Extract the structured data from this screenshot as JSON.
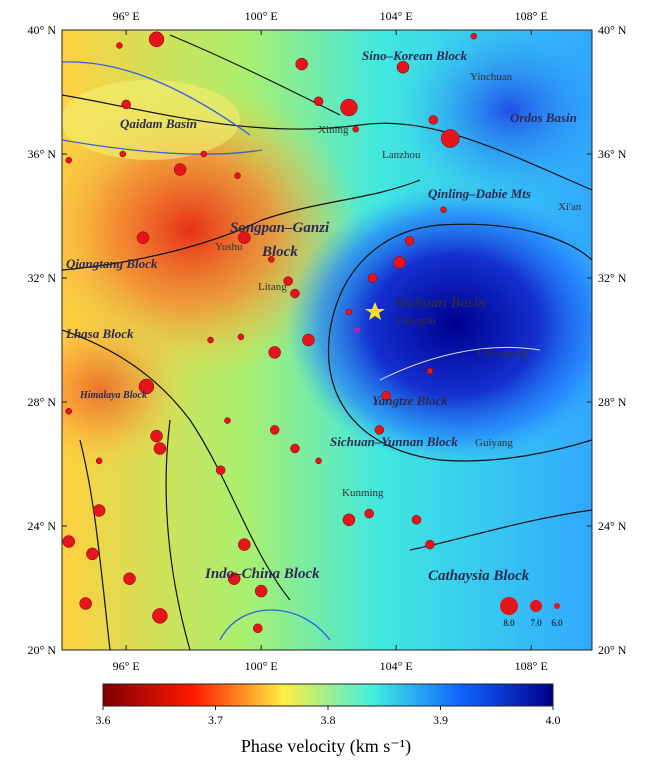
{
  "map": {
    "xlim": [
      94.1,
      109.8
    ],
    "ylim": [
      20,
      40
    ],
    "lon_ticks": [
      {
        "value": 96,
        "label": "96° E"
      },
      {
        "value": 100,
        "label": "100° E"
      },
      {
        "value": 104,
        "label": "104° E"
      },
      {
        "value": 108,
        "label": "108° E"
      }
    ],
    "lat_ticks": [
      {
        "value": 40,
        "label": "40° N"
      },
      {
        "value": 36,
        "label": "36° N"
      },
      {
        "value": 32,
        "label": "32° N"
      },
      {
        "value": 28,
        "label": "28° N"
      },
      {
        "value": 24,
        "label": "24° N"
      },
      {
        "value": 20,
        "label": "20° N"
      }
    ],
    "regions": [
      "Sino–Korean Block",
      "Qaidam Basin",
      "Ordos Basin",
      "Songpan–Ganzi",
      "Block",
      "Qiangtang Block",
      "Qinling–Dabie Mts",
      "Sichuan Basin",
      "Lhasa Block",
      "Himalaya Block",
      "Yangtze Block",
      "Sichuan–Yunnan Block",
      "Indo–China Block",
      "Cathaysia Block"
    ],
    "cities": [
      "Yinchuan",
      "Xining",
      "Lanzhou",
      "Xi'an",
      "Yushu",
      "Litang",
      "Chengdu",
      "Chongqing",
      "Kunming",
      "Guiyang"
    ],
    "events": [
      {
        "lon": 96.9,
        "lat": 39.7,
        "mag": 7.5
      },
      {
        "lon": 102.6,
        "lat": 37.5,
        "mag": 7.8
      },
      {
        "lon": 105.6,
        "lat": 36.5,
        "mag": 8
      },
      {
        "lon": 104.2,
        "lat": 38.8,
        "mag": 7
      },
      {
        "lon": 101.2,
        "lat": 38.9,
        "mag": 7
      },
      {
        "lon": 99.5,
        "lat": 33.3,
        "mag": 7
      },
      {
        "lon": 97.6,
        "lat": 35.5,
        "mag": 7
      },
      {
        "lon": 96.5,
        "lat": 33.3,
        "mag": 7
      },
      {
        "lon": 96.6,
        "lat": 28.5,
        "mag": 7.5
      },
      {
        "lon": 100.4,
        "lat": 29.6,
        "mag": 7
      },
      {
        "lon": 101.4,
        "lat": 30.0,
        "mag": 7
      },
      {
        "lon": 104.1,
        "lat": 32.5,
        "mag": 7
      },
      {
        "lon": 97.0,
        "lat": 21.1,
        "mag": 7.5
      },
      {
        "lon": 94.8,
        "lat": 21.5,
        "mag": 7
      },
      {
        "lon": 95.0,
        "lat": 23.1,
        "mag": 7
      },
      {
        "lon": 96.1,
        "lat": 22.3,
        "mag": 7
      },
      {
        "lon": 95.2,
        "lat": 24.5,
        "mag": 7
      },
      {
        "lon": 94.3,
        "lat": 23.5,
        "mag": 7
      },
      {
        "lon": 96.9,
        "lat": 26.9,
        "mag": 7
      },
      {
        "lon": 97.0,
        "lat": 26.5,
        "mag": 7
      },
      {
        "lon": 99.5,
        "lat": 23.4,
        "mag": 7
      },
      {
        "lon": 99.2,
        "lat": 22.3,
        "mag": 7
      },
      {
        "lon": 100.0,
        "lat": 21.9,
        "mag": 7
      },
      {
        "lon": 99.9,
        "lat": 20.7,
        "mag": 6.5
      },
      {
        "lon": 100.4,
        "lat": 27.1,
        "mag": 6.5
      },
      {
        "lon": 98.8,
        "lat": 25.8,
        "mag": 6.5
      },
      {
        "lon": 101.0,
        "lat": 26.5,
        "mag": 6.5
      },
      {
        "lon": 102.6,
        "lat": 24.2,
        "mag": 7
      },
      {
        "lon": 103.2,
        "lat": 24.4,
        "mag": 6.5
      },
      {
        "lon": 104.6,
        "lat": 24.2,
        "mag": 6.5
      },
      {
        "lon": 105.0,
        "lat": 23.4,
        "mag": 6.5
      },
      {
        "lon": 103.5,
        "lat": 27.1,
        "mag": 6.5
      },
      {
        "lon": 103.7,
        "lat": 28.2,
        "mag": 6.5
      },
      {
        "lon": 101.0,
        "lat": 31.5,
        "mag": 6.5
      },
      {
        "lon": 100.8,
        "lat": 31.9,
        "mag": 6.5
      },
      {
        "lon": 103.3,
        "lat": 32.0,
        "mag": 6.5
      },
      {
        "lon": 104.4,
        "lat": 33.2,
        "mag": 6.5
      },
      {
        "lon": 105.4,
        "lat": 34.2,
        "mag": 6
      },
      {
        "lon": 106.3,
        "lat": 39.8,
        "mag": 6
      },
      {
        "lon": 95.8,
        "lat": 39.5,
        "mag": 6
      },
      {
        "lon": 96.0,
        "lat": 37.6,
        "mag": 6.5
      },
      {
        "lon": 95.9,
        "lat": 36.0,
        "mag": 6
      },
      {
        "lon": 94.3,
        "lat": 35.8,
        "mag": 6
      },
      {
        "lon": 99.3,
        "lat": 35.3,
        "mag": 6
      },
      {
        "lon": 98.3,
        "lat": 36.0,
        "mag": 6
      },
      {
        "lon": 101.7,
        "lat": 37.7,
        "mag": 6.5
      },
      {
        "lon": 98.5,
        "lat": 30.0,
        "mag": 6
      },
      {
        "lon": 99.4,
        "lat": 30.1,
        "mag": 6
      },
      {
        "lon": 94.3,
        "lat": 27.7,
        "mag": 6
      },
      {
        "lon": 95.2,
        "lat": 26.1,
        "mag": 6
      },
      {
        "lon": 99.0,
        "lat": 27.4,
        "mag": 6
      },
      {
        "lon": 101.7,
        "lat": 26.1,
        "mag": 6
      },
      {
        "lon": 105.0,
        "lat": 29.0,
        "mag": 6
      },
      {
        "lon": 102.6,
        "lat": 30.9,
        "mag": 6
      },
      {
        "lon": 102.8,
        "lat": 36.8,
        "mag": 6
      },
      {
        "lon": 105.1,
        "lat": 37.1,
        "mag": 6.5
      },
      {
        "lon": 100.3,
        "lat": 32.6,
        "mag": 6
      }
    ],
    "event_color": "#e8141c",
    "magnitude_legend": [
      {
        "value": 8,
        "label": "8.0"
      },
      {
        "value": 7,
        "label": "7.0"
      },
      {
        "value": 6,
        "label": "6.0"
      }
    ]
  },
  "colorbar": {
    "label": "Phase velocity (km s⁻¹)",
    "range": [
      3.6,
      4.0
    ],
    "ticks": [
      {
        "value": 3.6,
        "label": "3.6"
      },
      {
        "value": 3.7,
        "label": "3.7"
      },
      {
        "value": 3.8,
        "label": "3.8"
      },
      {
        "value": 3.9,
        "label": "3.9"
      },
      {
        "value": 4.0,
        "label": "4.0"
      }
    ],
    "colors": [
      "#800000",
      "#ff1a00",
      "#ffee40",
      "#40f0e0",
      "#1060ff",
      "#00008a"
    ]
  }
}
